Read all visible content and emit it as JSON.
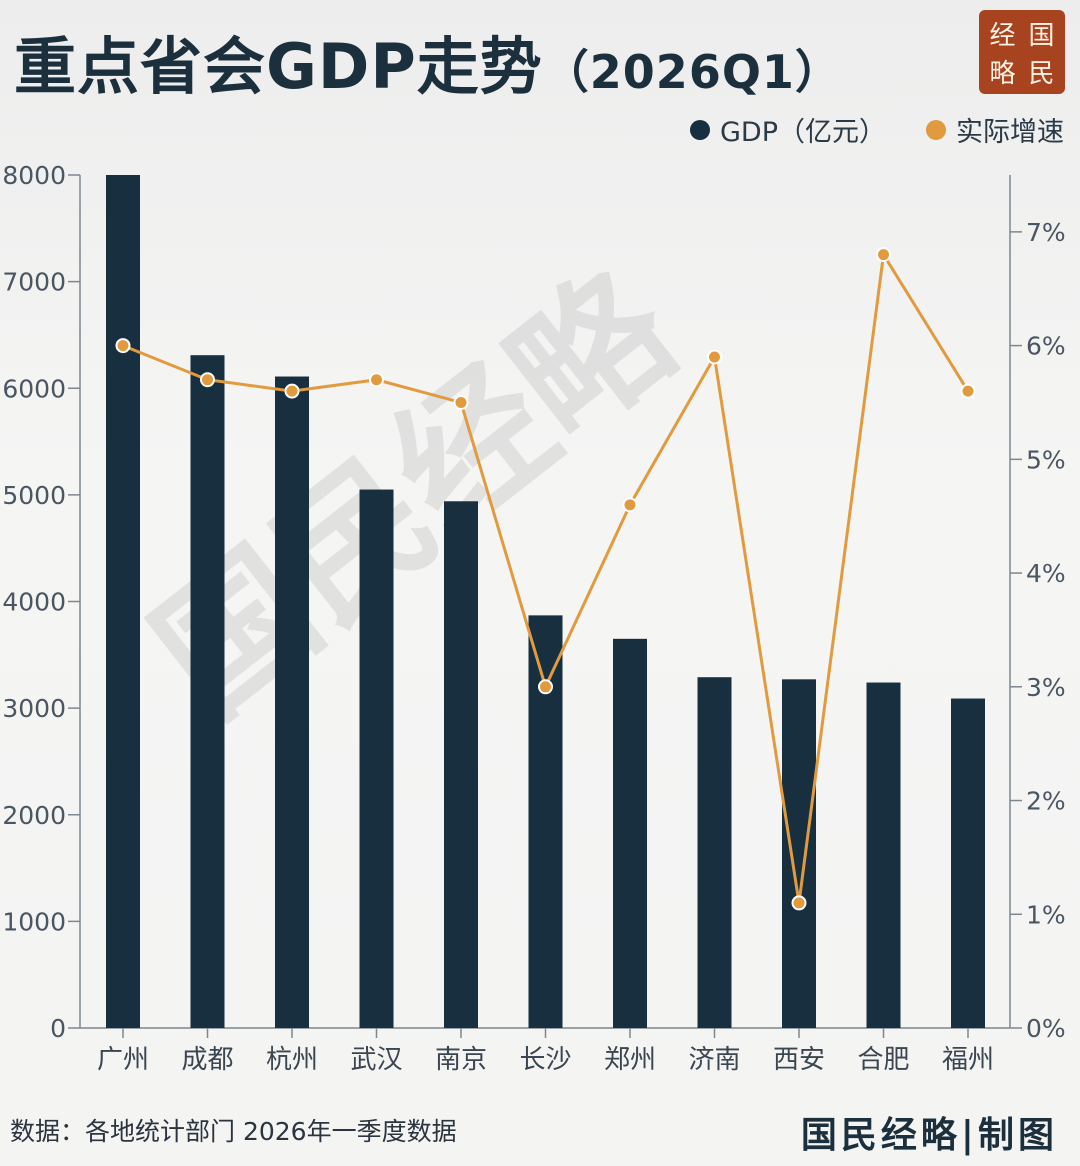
{
  "header": {
    "title": "重点省会GDP走势",
    "subtitle": "（2026Q1）",
    "seal_chars": [
      "经",
      "国",
      "略",
      "民"
    ]
  },
  "legend": {
    "gdp_label": "GDP（亿元）",
    "growth_label": "实际增速"
  },
  "watermark": "国民经略",
  "footer": {
    "source": "数据：各地统计部门 2026年一季度数据",
    "brand": "国民经略|制图"
  },
  "colors": {
    "bar": "#172f3f",
    "line": "#e29a3f",
    "seal": "#a8431f",
    "text": "#1b2f3d"
  },
  "chart_data": {
    "type": "bar",
    "title": "重点省会GDP走势（2026Q1）",
    "categories": [
      "广州",
      "成都",
      "杭州",
      "武汉",
      "南京",
      "长沙",
      "郑州",
      "济南",
      "西安",
      "合肥",
      "福州"
    ],
    "series": [
      {
        "name": "GDP（亿元）",
        "type": "bar",
        "axis": "left",
        "values": [
          8000,
          6310,
          6110,
          5050,
          4940,
          3870,
          3650,
          3290,
          3270,
          3240,
          3090
        ]
      },
      {
        "name": "实际增速",
        "type": "line",
        "axis": "right",
        "values": [
          6.0,
          5.7,
          5.6,
          5.7,
          5.5,
          3.0,
          4.6,
          5.9,
          1.1,
          6.8,
          5.6
        ]
      }
    ],
    "y_left": {
      "lim": [
        0,
        8000
      ],
      "ticks": [
        "0",
        "1000",
        "2000",
        "3000",
        "4000",
        "5000",
        "6000",
        "7000",
        "8000"
      ]
    },
    "y_right": {
      "lim": [
        0,
        7.5
      ],
      "ticks": [
        "0%",
        "1%",
        "2%",
        "3%",
        "4%",
        "5%",
        "6%",
        "7%"
      ]
    },
    "grid": false,
    "legend_position": "top-right"
  }
}
